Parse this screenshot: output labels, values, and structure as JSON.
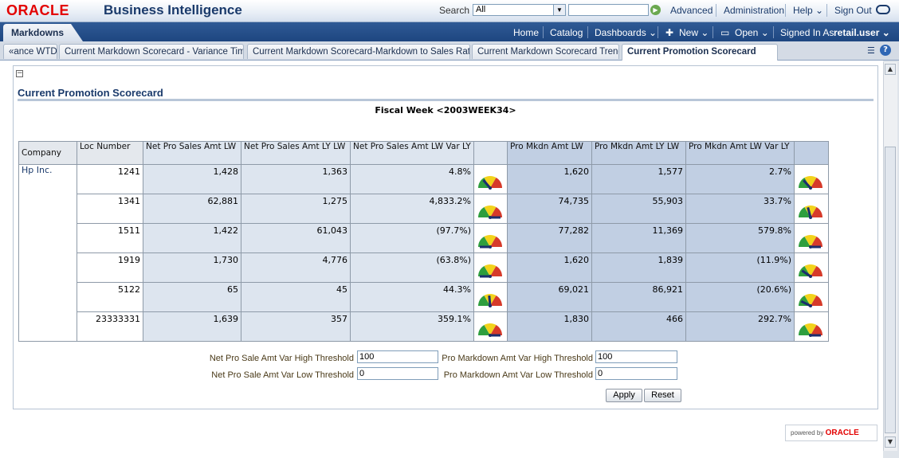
{
  "header": {
    "logo": "ORACLE",
    "title": "Business Intelligence",
    "search_label": "Search",
    "search_scope": "All",
    "search_value": "",
    "links": [
      "Advanced",
      "Administration",
      "Help ⌄",
      "Sign Out"
    ]
  },
  "nav": {
    "active_tab": "Markdowns",
    "links": [
      "Home",
      "Catalog",
      "Dashboards ⌄",
      "New ⌄",
      "Open ⌄",
      "Signed In As"
    ],
    "user": "retail.user ⌄"
  },
  "page_tabs": [
    "«ance WTD",
    "Current Markdown Scorecard - Variance Time",
    "Current Markdown Scorecard-Markdown to Sales Ratio",
    "Current Markdown Scorecard Trend",
    "Current Promotion Scorecard"
  ],
  "report": {
    "title": "Current Promotion Scorecard",
    "fiscal_week": "Fiscal Week <2003WEEK34>",
    "columns": [
      "Company",
      "Loc Number",
      "Net Pro Sales Amt LW",
      "Net Pro Sales Amt LY LW",
      "Net Pro Sales Amt LW Var LY",
      "",
      "Pro Mkdn Amt LW",
      "Pro Mkdn Amt LY LW",
      "Pro Mkdn Amt LW Var LY",
      ""
    ],
    "company": "Hp Inc.",
    "rows": [
      {
        "loc": "1241",
        "sales_lw": "1,428",
        "sales_ly": "1,363",
        "sales_var": "4.8%",
        "mkdn_lw": "1,620",
        "mkdn_ly": "1,577",
        "mkdn_var": "2.7%"
      },
      {
        "loc": "1341",
        "sales_lw": "62,881",
        "sales_ly": "1,275",
        "sales_var": "4,833.2%",
        "mkdn_lw": "74,735",
        "mkdn_ly": "55,903",
        "mkdn_var": "33.7%"
      },
      {
        "loc": "1511",
        "sales_lw": "1,422",
        "sales_ly": "61,043",
        "sales_var": "(97.7%)",
        "mkdn_lw": "77,282",
        "mkdn_ly": "11,369",
        "mkdn_var": "579.8%"
      },
      {
        "loc": "1919",
        "sales_lw": "1,730",
        "sales_ly": "4,776",
        "sales_var": "(63.8%)",
        "mkdn_lw": "1,620",
        "mkdn_ly": "1,839",
        "mkdn_var": "(11.9%)"
      },
      {
        "loc": "5122",
        "sales_lw": "65",
        "sales_ly": "45",
        "sales_var": "44.3%",
        "mkdn_lw": "69,021",
        "mkdn_ly": "86,921",
        "mkdn_var": "(20.6%)"
      },
      {
        "loc": "23333331",
        "sales_lw": "1,639",
        "sales_ly": "357",
        "sales_var": "359.1%",
        "mkdn_lw": "1,830",
        "mkdn_ly": "466",
        "mkdn_var": "292.7%"
      }
    ],
    "gauge_colors": {
      "low": "#2e9e3e",
      "mid": "#f2d21b",
      "high": "#d63a2a",
      "needle": "#1a2e6e"
    }
  },
  "thresholds": {
    "sales_high_label": "Net Pro Sale Amt Var High Threshold",
    "sales_high_value": "100",
    "sales_low_label": "Net Pro Sale Amt Var Low Threshold",
    "sales_low_value": "0",
    "mkdn_high_label": "Pro Markdown Amt Var High Threshold",
    "mkdn_high_value": "100",
    "mkdn_low_label": "Pro Markdown Amt Var Low Threshold",
    "mkdn_low_value": "0",
    "apply_label": "Apply",
    "reset_label": "Reset"
  },
  "footer": {
    "powered_by": "powered by",
    "brand": "ORACLE"
  }
}
